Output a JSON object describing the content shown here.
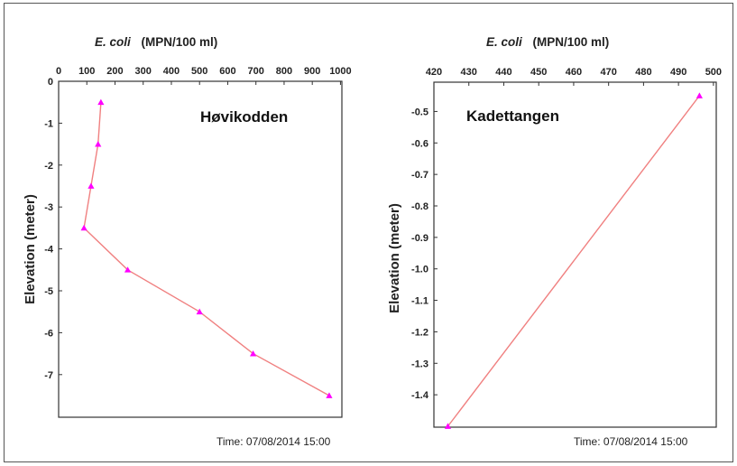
{
  "chart_data": [
    {
      "type": "line",
      "title_italic": "E. coli",
      "title_rest": "(MPN/100 ml)",
      "ylabel": "Elevation (meter)",
      "annotation": "Høvikodden",
      "timestamp": "Time: 07/08/2014  15:00",
      "xlim": [
        0,
        1000
      ],
      "ylim": [
        -8.0,
        0
      ],
      "x_ticks": [
        "0",
        "100",
        "200",
        "300",
        "400",
        "500",
        "600",
        "700",
        "800",
        "900",
        "1000"
      ],
      "y_ticks": [
        "0",
        "-1",
        "-2",
        "-3",
        "-4",
        "-5",
        "-6",
        "-7"
      ],
      "points": [
        {
          "x": 150,
          "y": -0.5
        },
        {
          "x": 140,
          "y": -1.5
        },
        {
          "x": 115,
          "y": -2.5
        },
        {
          "x": 90,
          "y": -3.5
        },
        {
          "x": 245,
          "y": -4.5
        },
        {
          "x": 500,
          "y": -5.5
        },
        {
          "x": 690,
          "y": -6.5
        },
        {
          "x": 960,
          "y": -7.5
        }
      ],
      "line_color": "#f08080",
      "marker_color": "#ff00ff"
    },
    {
      "type": "line",
      "title_italic": "E. coli",
      "title_rest": "(MPN/100 ml)",
      "ylabel": "Elevation (meter)",
      "annotation": "Kadettangen",
      "timestamp": "Time: 07/08/2014  15:00",
      "xlim": [
        420,
        500
      ],
      "ylim": [
        -1.5,
        -0.4
      ],
      "x_ticks": [
        "420",
        "430",
        "440",
        "450",
        "460",
        "470",
        "480",
        "490",
        "500"
      ],
      "y_ticks": [
        "-0.5",
        "-0.6",
        "-0.7",
        "-0.8",
        "-0.9",
        "-1.0",
        "-1.1",
        "-1.2",
        "-1.3",
        "-1.4"
      ],
      "points": [
        {
          "x": 496,
          "y": -0.45
        },
        {
          "x": 424,
          "y": -1.5
        }
      ],
      "line_color": "#f08080",
      "marker_color": "#ff00ff"
    }
  ]
}
